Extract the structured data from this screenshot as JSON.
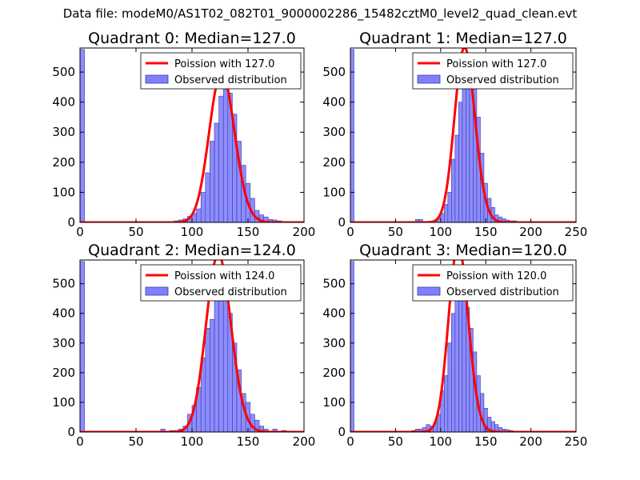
{
  "figure_title": "Data file: modeM0/AS1T02_082T01_9000002286_15482cztM0_level2_quad_clean.evt",
  "colors": {
    "bar_fill": "#7f7fff",
    "bar_edge": "#3a3aa0",
    "poisson_line": "#ff0000",
    "axes": "#000000"
  },
  "chart_data": [
    {
      "type": "bar",
      "title": "Quadrant 0: Median=127.0",
      "xlim": [
        0,
        200
      ],
      "ylim": [
        0,
        580
      ],
      "xticks": [
        0,
        50,
        100,
        150,
        200
      ],
      "yticks": [
        0,
        100,
        200,
        300,
        400,
        500
      ],
      "bin_width": 4,
      "bins": [
        [
          0,
          575
        ],
        [
          56,
          2
        ],
        [
          64,
          2
        ],
        [
          72,
          2
        ],
        [
          80,
          3
        ],
        [
          84,
          5
        ],
        [
          88,
          8
        ],
        [
          92,
          12
        ],
        [
          96,
          20
        ],
        [
          100,
          30
        ],
        [
          104,
          45
        ],
        [
          108,
          100
        ],
        [
          112,
          165
        ],
        [
          116,
          270
        ],
        [
          120,
          330
        ],
        [
          124,
          420
        ],
        [
          128,
          540
        ],
        [
          132,
          430
        ],
        [
          136,
          360
        ],
        [
          140,
          270
        ],
        [
          144,
          190
        ],
        [
          148,
          130
        ],
        [
          152,
          80
        ],
        [
          156,
          40
        ],
        [
          160,
          25
        ],
        [
          164,
          18
        ],
        [
          168,
          10
        ],
        [
          172,
          8
        ],
        [
          176,
          5
        ],
        [
          180,
          3
        ],
        [
          188,
          2
        ],
        [
          192,
          2
        ]
      ],
      "poisson_lambda": 127,
      "legend": [
        "Poission with 127.0",
        "Observed distribution"
      ]
    },
    {
      "type": "bar",
      "title": "Quadrant 1: Median=127.0",
      "xlim": [
        0,
        250
      ],
      "ylim": [
        0,
        580
      ],
      "xticks": [
        0,
        50,
        100,
        150,
        200,
        250
      ],
      "yticks": [
        0,
        100,
        200,
        300,
        400,
        500
      ],
      "bin_width": 4,
      "bins": [
        [
          0,
          575
        ],
        [
          72,
          10
        ],
        [
          76,
          10
        ],
        [
          92,
          5
        ],
        [
          96,
          15
        ],
        [
          100,
          30
        ],
        [
          104,
          60
        ],
        [
          108,
          100
        ],
        [
          112,
          210
        ],
        [
          116,
          290
        ],
        [
          120,
          400
        ],
        [
          124,
          490
        ],
        [
          128,
          550
        ],
        [
          132,
          560
        ],
        [
          136,
          460
        ],
        [
          140,
          350
        ],
        [
          144,
          230
        ],
        [
          148,
          130
        ],
        [
          152,
          80
        ],
        [
          156,
          50
        ],
        [
          160,
          25
        ],
        [
          164,
          18
        ],
        [
          168,
          12
        ],
        [
          172,
          8
        ],
        [
          176,
          5
        ],
        [
          180,
          5
        ],
        [
          184,
          3
        ],
        [
          188,
          2
        ],
        [
          192,
          2
        ]
      ],
      "poisson_lambda": 127,
      "legend": [
        "Poission with 127.0",
        "Observed distribution"
      ]
    },
    {
      "type": "bar",
      "title": "Quadrant 2: Median=124.0",
      "xlim": [
        0,
        200
      ],
      "ylim": [
        0,
        580
      ],
      "xticks": [
        0,
        50,
        100,
        150,
        200
      ],
      "yticks": [
        0,
        100,
        200,
        300,
        400,
        500
      ],
      "bin_width": 4,
      "bins": [
        [
          0,
          575
        ],
        [
          72,
          10
        ],
        [
          80,
          5
        ],
        [
          84,
          5
        ],
        [
          88,
          10
        ],
        [
          92,
          20
        ],
        [
          96,
          60
        ],
        [
          100,
          90
        ],
        [
          104,
          150
        ],
        [
          108,
          250
        ],
        [
          112,
          350
        ],
        [
          116,
          380
        ],
        [
          120,
          500
        ],
        [
          124,
          560
        ],
        [
          128,
          500
        ],
        [
          132,
          400
        ],
        [
          136,
          300
        ],
        [
          140,
          210
        ],
        [
          144,
          130
        ],
        [
          148,
          100
        ],
        [
          152,
          60
        ],
        [
          156,
          40
        ],
        [
          160,
          20
        ],
        [
          164,
          10
        ],
        [
          172,
          10
        ],
        [
          180,
          5
        ],
        [
          188,
          2
        ],
        [
          192,
          2
        ]
      ],
      "poisson_lambda": 124,
      "legend": [
        "Poission with 124.0",
        "Observed distribution"
      ]
    },
    {
      "type": "bar",
      "title": "Quadrant 3: Median=120.0",
      "xlim": [
        0,
        250
      ],
      "ylim": [
        0,
        580
      ],
      "xticks": [
        0,
        50,
        100,
        150,
        200,
        250
      ],
      "yticks": [
        0,
        100,
        200,
        300,
        400,
        500
      ],
      "bin_width": 4,
      "bins": [
        [
          0,
          575
        ],
        [
          68,
          5
        ],
        [
          72,
          10
        ],
        [
          76,
          10
        ],
        [
          80,
          15
        ],
        [
          84,
          25
        ],
        [
          88,
          20
        ],
        [
          92,
          30
        ],
        [
          96,
          60
        ],
        [
          100,
          140
        ],
        [
          104,
          190
        ],
        [
          108,
          300
        ],
        [
          112,
          400
        ],
        [
          116,
          490
        ],
        [
          120,
          540
        ],
        [
          124,
          500
        ],
        [
          128,
          420
        ],
        [
          132,
          350
        ],
        [
          136,
          270
        ],
        [
          140,
          190
        ],
        [
          144,
          130
        ],
        [
          148,
          80
        ],
        [
          152,
          50
        ],
        [
          156,
          35
        ],
        [
          160,
          25
        ],
        [
          164,
          15
        ],
        [
          168,
          10
        ],
        [
          172,
          8
        ],
        [
          176,
          5
        ],
        [
          184,
          2
        ],
        [
          192,
          2
        ]
      ],
      "poisson_lambda": 120,
      "legend": [
        "Poission with 120.0",
        "Observed distribution"
      ]
    }
  ]
}
